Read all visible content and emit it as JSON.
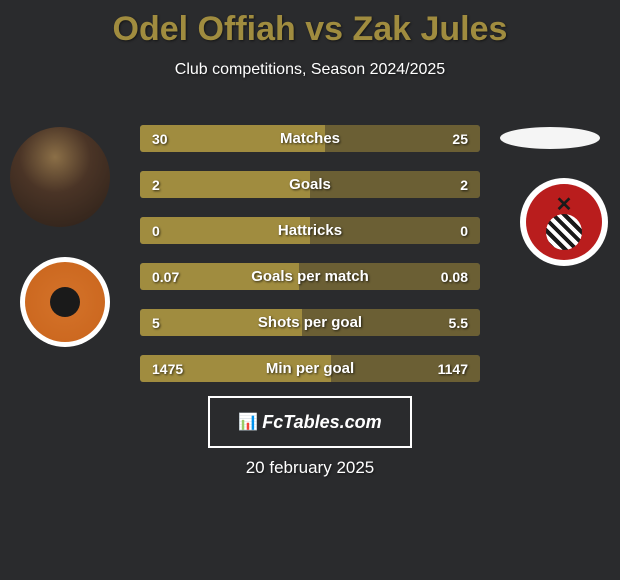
{
  "title": "Odel Offiah vs Zak Jules",
  "subtitle": "Club competitions, Season 2024/2025",
  "date": "20 february 2025",
  "watermark": "FcTables.com",
  "colors": {
    "background": "#2a2b2d",
    "title_color": "#a08c3f",
    "text_color": "#ffffff",
    "bar_left": "#a08c3f",
    "bar_right": "#6b5f34",
    "bar_bg": "#4a4a4a"
  },
  "stats": [
    {
      "label": "Matches",
      "left_value": "30",
      "right_value": "25",
      "left_pct": 54.5,
      "right_pct": 45.5
    },
    {
      "label": "Goals",
      "left_value": "2",
      "right_value": "2",
      "left_pct": 50,
      "right_pct": 50
    },
    {
      "label": "Hattricks",
      "left_value": "0",
      "right_value": "0",
      "left_pct": 50,
      "right_pct": 50
    },
    {
      "label": "Goals per match",
      "left_value": "0.07",
      "right_value": "0.08",
      "left_pct": 46.7,
      "right_pct": 53.3
    },
    {
      "label": "Shots per goal",
      "left_value": "5",
      "right_value": "5.5",
      "left_pct": 47.6,
      "right_pct": 52.4
    },
    {
      "label": "Min per goal",
      "left_value": "1475",
      "right_value": "1147",
      "left_pct": 56.3,
      "right_pct": 43.7
    }
  ]
}
